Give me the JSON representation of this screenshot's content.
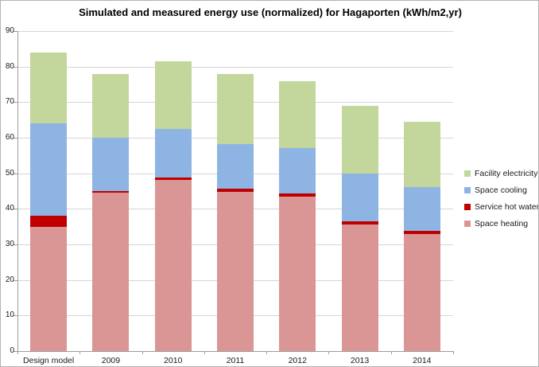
{
  "chart_data": {
    "type": "bar",
    "stacked": true,
    "title": "Simulated and measured energy use (normalized) for Hagaporten (kWh/m2,yr)",
    "categories": [
      "Design model",
      "2009",
      "2010",
      "2011",
      "2012",
      "2013",
      "2014"
    ],
    "series": [
      {
        "name": "Space heating",
        "color": "#D99694",
        "values": [
          35,
          44.6,
          48.1,
          44.7,
          43.5,
          35.7,
          33
        ]
      },
      {
        "name": "Service hot water",
        "color": "#C00000",
        "values": [
          3,
          0.5,
          0.7,
          1.0,
          0.8,
          0.9,
          0.7
        ]
      },
      {
        "name": "Space cooling",
        "color": "#8EB4E3",
        "values": [
          26,
          14.9,
          13.7,
          12.4,
          12.7,
          13.4,
          12.4
        ]
      },
      {
        "name": "Facility electricity",
        "color": "#C3D69B",
        "values": [
          20,
          18,
          19,
          19.9,
          19,
          19,
          18.3
        ]
      }
    ],
    "bar_totals": [
      84,
      78,
      81.5,
      78,
      76,
      69,
      64.4
    ],
    "y_axis": {
      "min": 0,
      "max": 90,
      "step": 10,
      "tick_labels": [
        "0",
        "10",
        "20",
        "30",
        "40",
        "50",
        "60",
        "70",
        "80",
        "90"
      ]
    },
    "legend": {
      "position": "right",
      "order_top_to_bottom": [
        "Facility electricity",
        "Space cooling",
        "Service hot water",
        "Space heating"
      ]
    },
    "grid": true,
    "colors": {
      "gridline": "#d6d6d6",
      "axis": "#9c9c9c",
      "frame_border": "#b3b3b3",
      "background": "#ffffff"
    }
  }
}
